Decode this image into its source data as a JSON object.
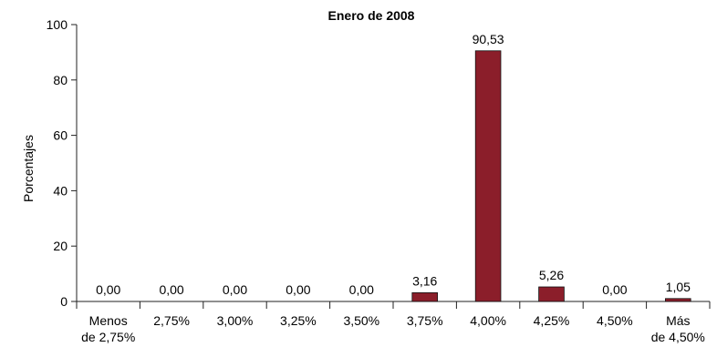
{
  "chart_data": {
    "type": "bar",
    "title": "Enero de 2008",
    "ylabel": "Porcentajes",
    "xlabel": "",
    "ylim": [
      0,
      100
    ],
    "yticks": [
      0,
      20,
      40,
      60,
      80,
      100
    ],
    "categories": [
      [
        "Menos",
        "de 2,75%"
      ],
      [
        "2,75%"
      ],
      [
        "3,00%"
      ],
      [
        "3,25%"
      ],
      [
        "3,50%"
      ],
      [
        "3,75%"
      ],
      [
        "4,00%"
      ],
      [
        "4,25%"
      ],
      [
        "4,50%"
      ],
      [
        "Más",
        "de 4,50%"
      ]
    ],
    "values": [
      0.0,
      0.0,
      0.0,
      0.0,
      0.0,
      3.16,
      90.53,
      5.26,
      0.0,
      1.05
    ],
    "value_labels": [
      "0,00",
      "0,00",
      "0,00",
      "0,00",
      "0,00",
      "3,16",
      "90,53",
      "5,26",
      "0,00",
      "1,05"
    ],
    "bar_color": "#8b1e2a",
    "grid": false,
    "legend": "none"
  }
}
